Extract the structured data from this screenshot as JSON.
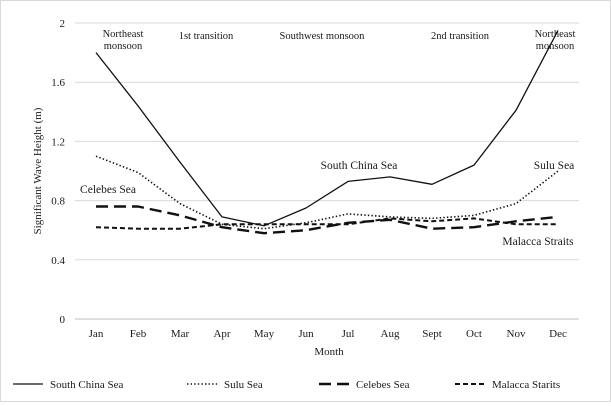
{
  "chart_data": {
    "type": "line",
    "xlabel": "Month",
    "ylabel": "Significant  Wave Height  (m)",
    "ylim": [
      0,
      2
    ],
    "yticks": [
      0,
      0.4,
      0.8,
      1.2,
      1.6,
      2
    ],
    "ytick_labels": [
      "0",
      "0.4",
      "0.8",
      "1.2",
      "1.6",
      "2"
    ],
    "grid": "horizontal",
    "legend_position": "bottom",
    "categories": [
      "Jan",
      "Feb",
      "Mar",
      "Apr",
      "May",
      "Jun",
      "Jul",
      "Aug",
      "Sept",
      "Oct",
      "Nov",
      "Dec"
    ],
    "series": [
      {
        "name": "South China Sea",
        "style": "solid",
        "values": [
          1.8,
          1.44,
          1.06,
          0.69,
          0.63,
          0.75,
          0.93,
          0.96,
          0.91,
          1.04,
          1.41,
          1.95
        ]
      },
      {
        "name": "Sulu Sea",
        "style": "dotted",
        "values": [
          1.1,
          0.99,
          0.78,
          0.64,
          0.61,
          0.65,
          0.71,
          0.69,
          0.68,
          0.7,
          0.78,
          1.0
        ]
      },
      {
        "name": "Celebes Sea",
        "style": "long-dash",
        "values": [
          0.76,
          0.76,
          0.7,
          0.62,
          0.58,
          0.6,
          0.65,
          0.67,
          0.61,
          0.62,
          0.66,
          0.69
        ]
      },
      {
        "name": "Malacca Starits",
        "style": "dash",
        "values": [
          0.62,
          0.61,
          0.61,
          0.64,
          0.64,
          0.64,
          0.64,
          0.68,
          0.66,
          0.68,
          0.64,
          0.64
        ]
      }
    ],
    "annotations": [
      {
        "id": "ne-start",
        "lines": [
          "Northeast",
          "monsoon"
        ]
      },
      {
        "id": "transition-1",
        "lines": [
          "1st transition"
        ]
      },
      {
        "id": "southwest",
        "lines": [
          "Southwest monsoon"
        ]
      },
      {
        "id": "transition-2",
        "lines": [
          "2nd transition"
        ]
      },
      {
        "id": "ne-end",
        "lines": [
          "Northeast",
          "monsoon"
        ]
      }
    ],
    "series_labels": [
      {
        "id": "scs",
        "text": "South China Sea"
      },
      {
        "id": "sulu",
        "text": "Sulu Sea"
      },
      {
        "id": "celebes",
        "text": "Celebes Sea"
      },
      {
        "id": "malacca",
        "text": "Malacca Straits"
      }
    ]
  }
}
